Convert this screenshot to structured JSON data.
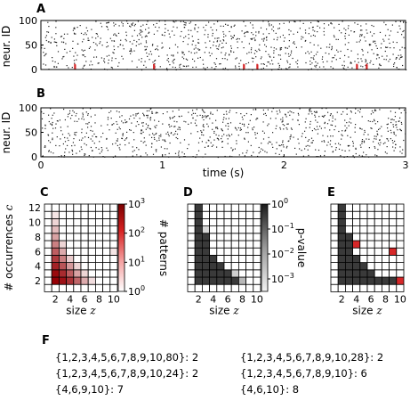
{
  "chart_data": [
    {
      "panel": "A",
      "type": "scatter",
      "ylabel": "neur. ID",
      "yticks": [
        0,
        50,
        100
      ],
      "ylim": [
        0,
        100
      ],
      "xlim": [
        0,
        3
      ],
      "raster_density": 900,
      "pattern_times": [
        0.28,
        0.93,
        1.67,
        1.78,
        2.6,
        2.68
      ],
      "pattern_neurons_max": 10,
      "pattern_color": "#d62728"
    },
    {
      "panel": "B",
      "type": "scatter",
      "ylabel": "neur. ID",
      "yticks": [
        0,
        50,
        100
      ],
      "ylim": [
        0,
        100
      ],
      "xlim": [
        0,
        3
      ],
      "xticks": [
        0,
        1,
        2,
        3
      ],
      "xlabel": "time (s)",
      "raster_density": 900
    },
    {
      "panel": "C",
      "type": "heatmap",
      "xlabel_text": "size ",
      "xlabel_var": "z",
      "ylabel_text": "# occurrences ",
      "ylabel_var": "c",
      "xticks": [
        2,
        4,
        6,
        8,
        10
      ],
      "yticks": [
        2,
        4,
        6,
        8,
        10,
        12
      ],
      "cols": 10,
      "rows": 12,
      "colorbar_label": "# patterns",
      "colorbar_ticks": [
        {
          "base": "10",
          "exp": "3"
        },
        {
          "base": "10",
          "exp": "2"
        },
        {
          "base": "10",
          "exp": "1"
        },
        {
          "base": "10",
          "exp": "0"
        }
      ],
      "colorbar_log_range": [
        0,
        3
      ],
      "cells": [
        {
          "z": 2,
          "c": 2,
          "log10": 3.0
        },
        {
          "z": 3,
          "c": 2,
          "log10": 2.8
        },
        {
          "z": 4,
          "c": 2,
          "log10": 2.4
        },
        {
          "z": 5,
          "c": 2,
          "log10": 1.8
        },
        {
          "z": 6,
          "c": 2,
          "log10": 1.0
        },
        {
          "z": 7,
          "c": 2,
          "log10": 0.4
        },
        {
          "z": 2,
          "c": 3,
          "log10": 2.9
        },
        {
          "z": 3,
          "c": 3,
          "log10": 2.5
        },
        {
          "z": 4,
          "c": 3,
          "log10": 1.9
        },
        {
          "z": 5,
          "c": 3,
          "log10": 1.1
        },
        {
          "z": 6,
          "c": 3,
          "log10": 0.5
        },
        {
          "z": 2,
          "c": 4,
          "log10": 2.6
        },
        {
          "z": 3,
          "c": 4,
          "log10": 2.0
        },
        {
          "z": 4,
          "c": 4,
          "log10": 1.2
        },
        {
          "z": 5,
          "c": 4,
          "log10": 0.5
        },
        {
          "z": 2,
          "c": 5,
          "log10": 2.3
        },
        {
          "z": 3,
          "c": 5,
          "log10": 1.5
        },
        {
          "z": 4,
          "c": 5,
          "log10": 0.6
        },
        {
          "z": 2,
          "c": 6,
          "log10": 1.9
        },
        {
          "z": 3,
          "c": 6,
          "log10": 1.0
        },
        {
          "z": 2,
          "c": 7,
          "log10": 1.5
        },
        {
          "z": 3,
          "c": 7,
          "log10": 0.5
        },
        {
          "z": 2,
          "c": 8,
          "log10": 1.1
        },
        {
          "z": 2,
          "c": 9,
          "log10": 0.8
        },
        {
          "z": 2,
          "c": 10,
          "log10": 0.5
        },
        {
          "z": 2,
          "c": 11,
          "log10": 0.3
        },
        {
          "z": 10,
          "c": 6,
          "log10": 0.3
        }
      ]
    },
    {
      "panel": "D",
      "type": "heatmap",
      "xlabel_text": "size ",
      "xlabel_var": "z",
      "xticks": [
        2,
        4,
        6,
        8,
        10
      ],
      "cols": 10,
      "rows": 12,
      "colorbar_label": "p-value",
      "colorbar_ticks": [
        {
          "base": "10",
          "exp": "0"
        },
        {
          "base": "10",
          "exp": "−1"
        },
        {
          "base": "10",
          "exp": "−2"
        },
        {
          "base": "10",
          "exp": "−3"
        }
      ],
      "colorbar_log_range": [
        -3.5,
        0
      ],
      "dark_cells": [
        {
          "z": 2,
          "c_from": 2,
          "c_to": 12
        },
        {
          "z": 3,
          "c_from": 2,
          "c_to": 8
        },
        {
          "z": 4,
          "c_from": 2,
          "c_to": 5
        },
        {
          "z": 5,
          "c_from": 2,
          "c_to": 4
        },
        {
          "z": 6,
          "c_from": 2,
          "c_to": 3
        },
        {
          "z": 7,
          "c_from": 2,
          "c_to": 2
        }
      ],
      "gray_cells": [
        {
          "z": 8,
          "c": 2,
          "shade": "#b8b8b8"
        },
        {
          "z": 7,
          "c": 3,
          "shade": "#d0d0d0"
        },
        {
          "z": 3,
          "c": 9,
          "shade": "#d8d8d8"
        }
      ]
    },
    {
      "panel": "E",
      "type": "heatmap",
      "xlabel_text": "size ",
      "xlabel_var": "z",
      "xticks": [
        2,
        4,
        6,
        8,
        10
      ],
      "cols": 10,
      "rows": 12,
      "dark_cells": [
        {
          "z": 2,
          "c_from": 2,
          "c_to": 12
        },
        {
          "z": 3,
          "c_from": 2,
          "c_to": 8
        },
        {
          "z": 4,
          "c_from": 2,
          "c_to": 5
        },
        {
          "z": 5,
          "c_from": 2,
          "c_to": 4
        },
        {
          "z": 6,
          "c_from": 2,
          "c_to": 3
        },
        {
          "z": 7,
          "c_from": 2,
          "c_to": 2
        },
        {
          "z": 8,
          "c_from": 2,
          "c_to": 2
        },
        {
          "z": 9,
          "c_from": 2,
          "c_to": 2
        }
      ],
      "red_cells": [
        {
          "z": 4,
          "c": 7
        },
        {
          "z": 10,
          "c": 2
        },
        {
          "z": 9,
          "c": 6
        }
      ],
      "red_color": "#d62728"
    }
  ],
  "panel_labels": {
    "a": "A",
    "b": "B",
    "c": "C",
    "d": "D",
    "e": "E",
    "f": "F"
  },
  "panel_f": {
    "left": [
      "{1,2,3,4,5,6,7,8,9,10,80}: 2",
      "{1,2,3,4,5,6,7,8,9,10,24}: 2",
      "{4,6,9,10}: 7"
    ],
    "right": [
      "{1,2,3,4,5,6,7,8,9,10,28}: 2",
      "{1,2,3,4,5,6,7,8,9,10}: 6",
      "{4,6,10}: 8"
    ]
  },
  "colors": {
    "dark_cell": "#3a3a3a",
    "grid": "#000000",
    "red": "#d62728"
  }
}
